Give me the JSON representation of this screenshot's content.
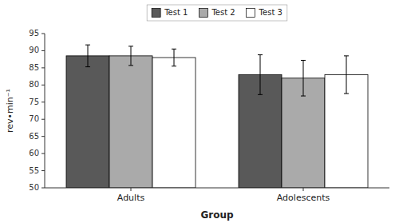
{
  "chart_data": {
    "type": "bar",
    "xlabel": "Group",
    "ylabel": "rev•min⁻¹",
    "categories": [
      "Adults",
      "Adolescents"
    ],
    "series": [
      {
        "name": "Test 1",
        "color": "#595959",
        "values": [
          88.5,
          83.0
        ],
        "errors": [
          3.2,
          5.8
        ]
      },
      {
        "name": "Test 2",
        "color": "#aaaaaa",
        "values": [
          88.5,
          82.0
        ],
        "errors": [
          2.8,
          5.2
        ]
      },
      {
        "name": "Test 3",
        "color": "#ffffff",
        "values": [
          88.0,
          83.0
        ],
        "errors": [
          2.5,
          5.5
        ]
      }
    ],
    "ylim": [
      50,
      95
    ],
    "yticks": [
      50,
      55,
      60,
      65,
      70,
      75,
      80,
      85,
      90,
      95
    ],
    "grid": false,
    "legend": "top"
  }
}
